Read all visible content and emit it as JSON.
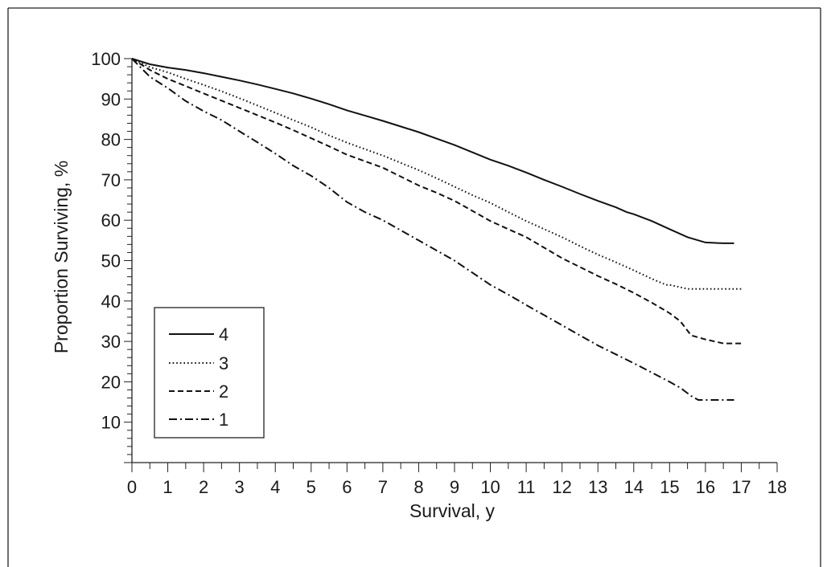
{
  "chart_data": {
    "type": "line",
    "xlabel": "Survival, y",
    "ylabel": "Proportion Surviving, %",
    "xlim": [
      0,
      18
    ],
    "ylim": [
      0,
      100
    ],
    "xticks": [
      "0",
      "1",
      "2",
      "3",
      "4",
      "5",
      "6",
      "7",
      "8",
      "9",
      "10",
      "11",
      "12",
      "13",
      "14",
      "15",
      "16",
      "17",
      "18"
    ],
    "yticks": [
      "10",
      "20",
      "30",
      "40",
      "50",
      "60",
      "70",
      "80",
      "90",
      "100"
    ],
    "grid": false,
    "legend_position": "bottom-left",
    "series": [
      {
        "name": "4",
        "style": "solid",
        "x": [
          0,
          0.5,
          1,
          1.5,
          2,
          2.5,
          3,
          3.5,
          4,
          4.5,
          5,
          5.5,
          6,
          6.5,
          7,
          7.5,
          8,
          8.5,
          9,
          9.5,
          10,
          10.5,
          11,
          11.5,
          12,
          12.5,
          13,
          13.5,
          13.8,
          14,
          14.5,
          15,
          15.5,
          16,
          16.5,
          16.8
        ],
        "y": [
          100,
          98.6,
          97.8,
          97.2,
          96.4,
          95.5,
          94.6,
          93.6,
          92.5,
          91.4,
          90.1,
          88.7,
          87.2,
          85.9,
          84.6,
          83.2,
          81.8,
          80.2,
          78.6,
          76.8,
          75.0,
          73.5,
          71.8,
          70.0,
          68.3,
          66.5,
          64.8,
          63.2,
          62.0,
          61.5,
          59.8,
          57.8,
          55.8,
          54.5,
          54.3,
          54.3
        ]
      },
      {
        "name": "3",
        "style": "dotted",
        "x": [
          0,
          0.5,
          1,
          1.5,
          2,
          2.5,
          3,
          3.5,
          4,
          4.5,
          5,
          5.5,
          6,
          6.5,
          7,
          7.5,
          8,
          8.5,
          9,
          9.5,
          10,
          10.5,
          11,
          11.5,
          12,
          12.5,
          13,
          13.5,
          14,
          14.5,
          14.9,
          15.0,
          15.5,
          16,
          16.5,
          17
        ],
        "y": [
          100,
          97.9,
          96.6,
          95.0,
          93.5,
          91.9,
          90.2,
          88.4,
          86.6,
          84.8,
          83.0,
          81.0,
          79.2,
          77.6,
          76.0,
          74.2,
          72.4,
          70.4,
          68.3,
          66.2,
          64.3,
          62.0,
          59.8,
          57.8,
          55.8,
          53.6,
          51.5,
          49.6,
          47.6,
          45.5,
          44.0,
          44.0,
          43.0,
          43.0,
          43.0,
          43.0
        ]
      },
      {
        "name": "2",
        "style": "dashed",
        "x": [
          0,
          0.5,
          1,
          1.5,
          2,
          2.5,
          3,
          3.5,
          4,
          4.5,
          5,
          5.5,
          6,
          6.5,
          7,
          7.5,
          8,
          8.5,
          9,
          9.5,
          10,
          10.5,
          11,
          11.5,
          12,
          12.5,
          13,
          13.5,
          14,
          14.5,
          15,
          15.3,
          15.6,
          16,
          16.5,
          17
        ],
        "y": [
          100,
          97.2,
          95.0,
          93.2,
          91.4,
          89.6,
          87.8,
          86.0,
          84.2,
          82.3,
          80.3,
          78.3,
          76.2,
          74.6,
          73.0,
          70.8,
          68.6,
          66.8,
          64.8,
          62.3,
          59.8,
          57.8,
          55.8,
          53.2,
          50.6,
          48.4,
          46.2,
          44.2,
          42.0,
          39.6,
          37.0,
          35.0,
          31.5,
          30.5,
          29.5,
          29.5
        ]
      },
      {
        "name": "1",
        "style": "dashdot",
        "x": [
          0,
          0.5,
          1,
          1.5,
          2,
          2.5,
          3,
          3.5,
          4,
          4.5,
          5,
          5.5,
          6,
          6.5,
          7,
          7.5,
          8,
          8.5,
          9,
          9.5,
          10,
          10.5,
          11,
          11.5,
          12,
          12.5,
          13,
          13.5,
          14,
          14.5,
          15,
          15.3,
          15.6,
          15.8,
          16,
          16.5,
          16.8
        ],
        "y": [
          100,
          95.5,
          92.7,
          89.5,
          87.0,
          84.8,
          82.0,
          79.3,
          76.5,
          73.5,
          71.0,
          68.0,
          64.5,
          62.0,
          60.0,
          57.5,
          55.0,
          52.5,
          50.0,
          47.0,
          44.0,
          41.6,
          39.0,
          36.5,
          34.0,
          31.5,
          29.0,
          26.8,
          24.6,
          22.3,
          20.0,
          18.5,
          16.5,
          15.5,
          15.5,
          15.5,
          15.5
        ]
      }
    ]
  }
}
